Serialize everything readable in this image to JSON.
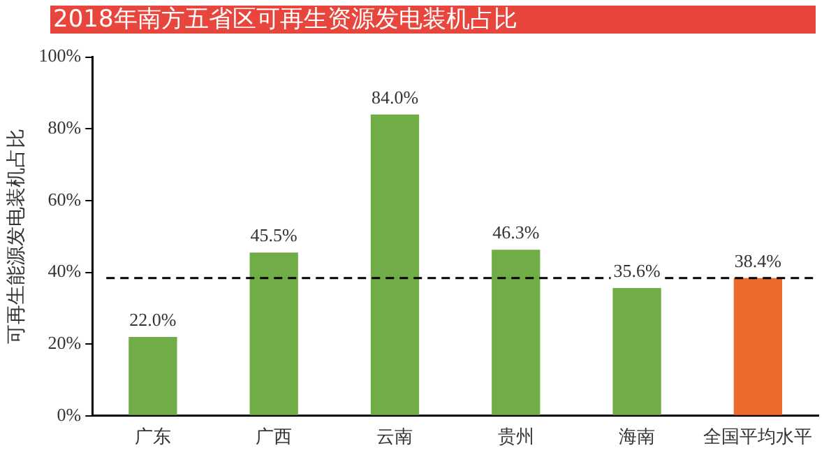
{
  "chart_data": {
    "type": "bar",
    "title": "2018年南方五省区可再生资源发电装机占比",
    "ylabel": "可再生能源发电装机占比",
    "categories": [
      "广东",
      "广西",
      "云南",
      "贵州",
      "海南",
      "全国平均水平"
    ],
    "values": [
      22.0,
      45.5,
      84.0,
      46.3,
      35.6,
      38.4
    ],
    "colors": [
      "#70ad47",
      "#70ad47",
      "#70ad47",
      "#70ad47",
      "#70ad47",
      "#ed6a2c"
    ],
    "value_labels": [
      "22.0%",
      "45.5%",
      "84.0%",
      "46.3%",
      "35.6%",
      "38.4%"
    ],
    "ylim": [
      0,
      100
    ],
    "yticks": [
      {
        "value": 0,
        "label": "0%"
      },
      {
        "value": 20,
        "label": "20%"
      },
      {
        "value": 40,
        "label": "40%"
      },
      {
        "value": 60,
        "label": "60%"
      },
      {
        "value": 80,
        "label": "80%"
      },
      {
        "value": 100,
        "label": "100%"
      }
    ],
    "ref_lines": [
      {
        "axis": "y",
        "value": 38.4,
        "color": "#000000",
        "line_style": "dashed"
      }
    ],
    "grid": false,
    "legend": false
  }
}
